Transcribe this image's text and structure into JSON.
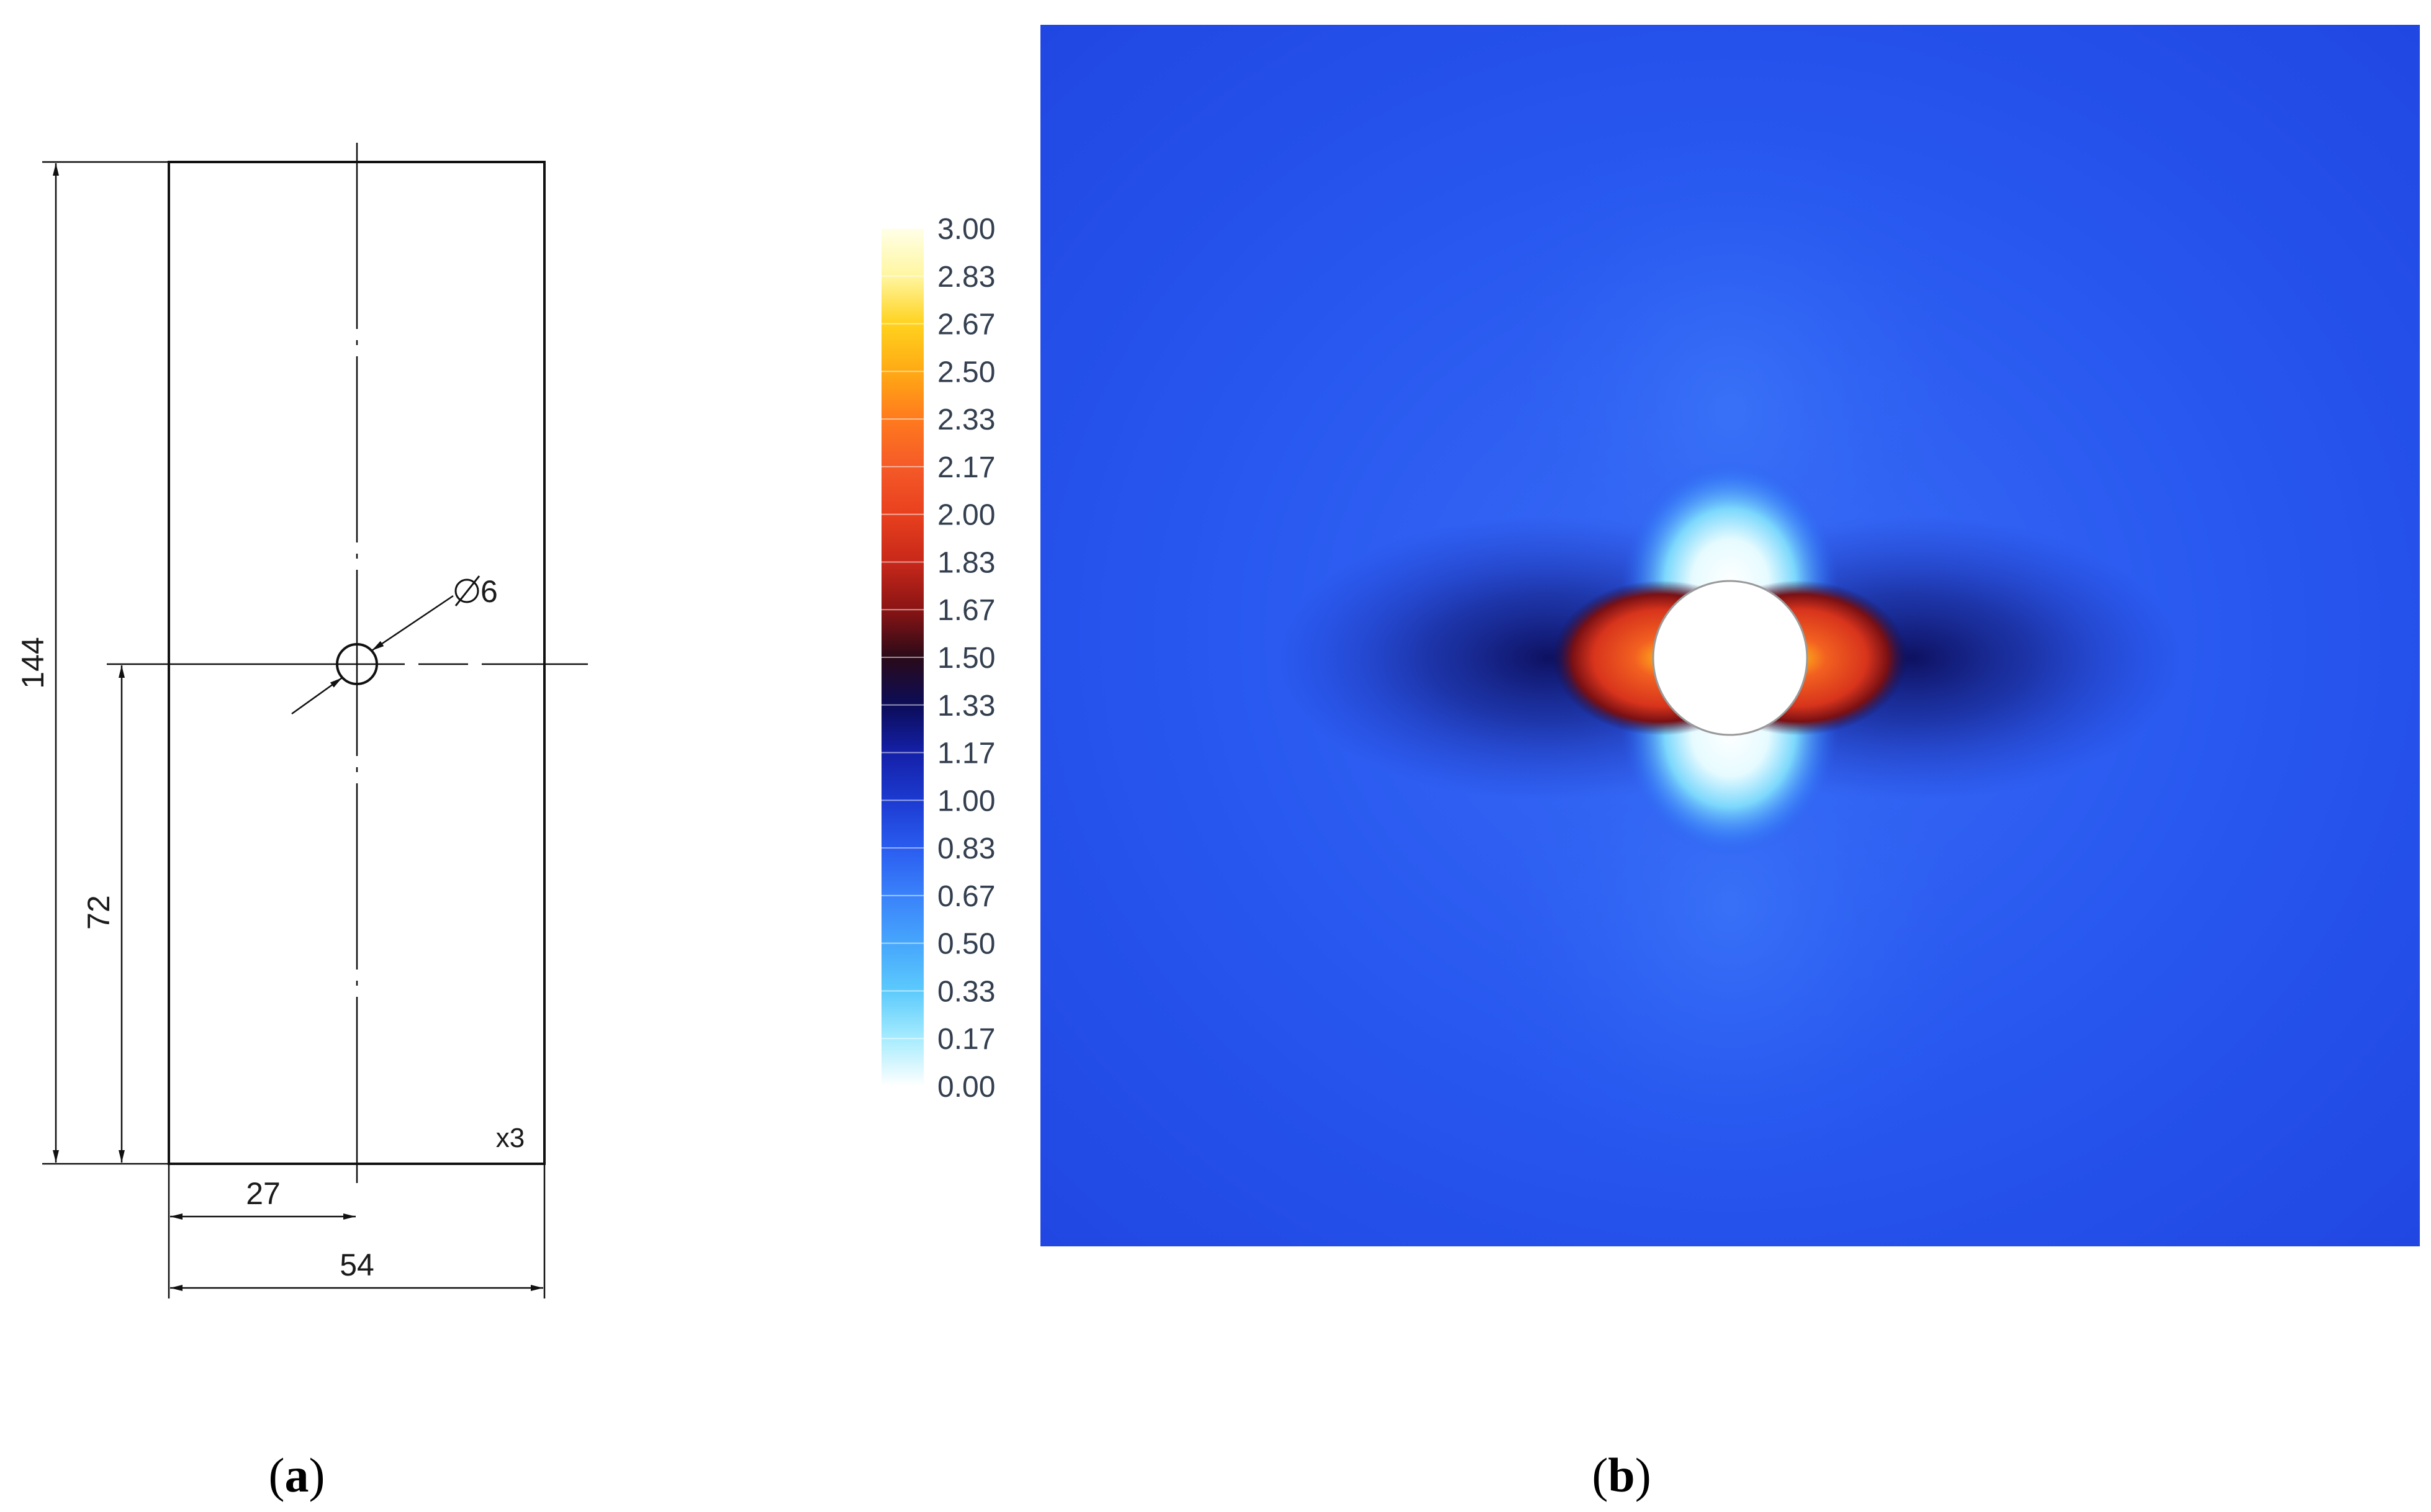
{
  "drawing": {
    "height_dim": "144",
    "hole_height_dim": "72",
    "hole_offset_dim": "27",
    "width_dim": "54",
    "hole_diameter": "6",
    "quantity_note": "x3"
  },
  "colorbar": {
    "ticks": [
      "3.00",
      "2.83",
      "2.67",
      "2.50",
      "2.33",
      "2.17",
      "2.00",
      "1.83",
      "1.67",
      "1.50",
      "1.33",
      "1.17",
      "1.00",
      "0.83",
      "0.67",
      "0.50",
      "0.33",
      "0.17",
      "0.00"
    ],
    "stops": [
      "#ffffe8",
      "#fff6a0",
      "#ffd21e",
      "#ffaa14",
      "#ff7a1e",
      "#f55a28",
      "#e8401e",
      "#c8281a",
      "#8a1414",
      "#2a0a18",
      "#0c0c58",
      "#1420a8",
      "#1c3ad0",
      "#2a5cf0",
      "#3a82fa",
      "#46a6fc",
      "#5ccafc",
      "#a6ecfe",
      "#ffffff"
    ]
  },
  "field": {
    "background": "#2654ee",
    "hot_color": "#e83c1e",
    "cold_color": "#ffffff",
    "dark_color": "#0c0c58"
  },
  "captions": {
    "a": {
      "open": "(",
      "letter": "a",
      "close": ")"
    },
    "b": {
      "open": "(",
      "letter": "b",
      "close": ")"
    }
  }
}
